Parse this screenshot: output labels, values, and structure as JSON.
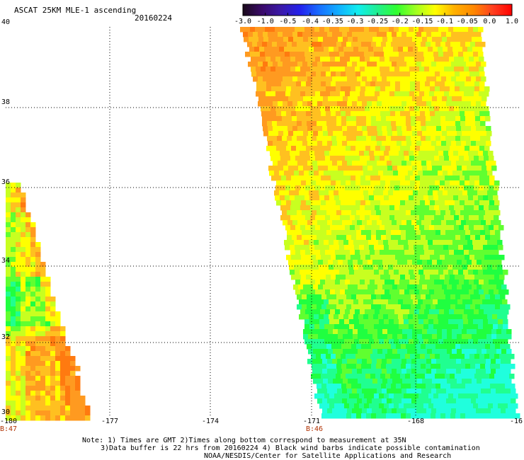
{
  "header": {
    "title": "ASCAT 25KM MLE-1 ascending",
    "date": "20160224"
  },
  "colorbar": {
    "labels": [
      "-3.0",
      "-1.0",
      "-0.5",
      "-0.4",
      "-0.35",
      "-0.3",
      "-0.25",
      "-0.2",
      "-0.15",
      "-0.1",
      "-0.05",
      "0.0",
      "1.0"
    ],
    "colors": [
      "#1a0a1a",
      "#3a0a6a",
      "#3a1aaa",
      "#2222ee",
      "#1870ff",
      "#10b0ff",
      "#10eeee",
      "#20ee90",
      "#30ff30",
      "#a0ff20",
      "#ffff00",
      "#ffb000",
      "#ff8800",
      "#ff4020",
      "#ff0000"
    ]
  },
  "axes": {
    "y_ticks": [
      "40",
      "38",
      "36",
      "34",
      "32",
      "30"
    ],
    "x_ticks": [
      "-180",
      "-177",
      "-174",
      "-171",
      "-168",
      "-16"
    ],
    "time_labels": [
      "B:47",
      "B:46"
    ]
  },
  "swaths": {
    "palette_note": "MLE values rendered as colored grid cells",
    "colors": {
      "orange": "#ff9a20",
      "dark_orange": "#ff7a10",
      "yellow_orange": "#ffc020",
      "yellow": "#ffff00",
      "yellow_green": "#c8ff20",
      "green": "#60ff30",
      "bright_green": "#20ff40",
      "cyan_green": "#20ff90",
      "cyan": "#20ffdd"
    }
  },
  "notes": {
    "line1": "Note: 1) Times are GMT 2)Times along bottom correspond to measurement at 35N",
    "line2": "3)Data buffer is 22 hrs from 20160224 4) Black wind barbs indicate possible contamination",
    "line3": "NOAA/NESDIS/Center for Satellite Applications and Research"
  }
}
